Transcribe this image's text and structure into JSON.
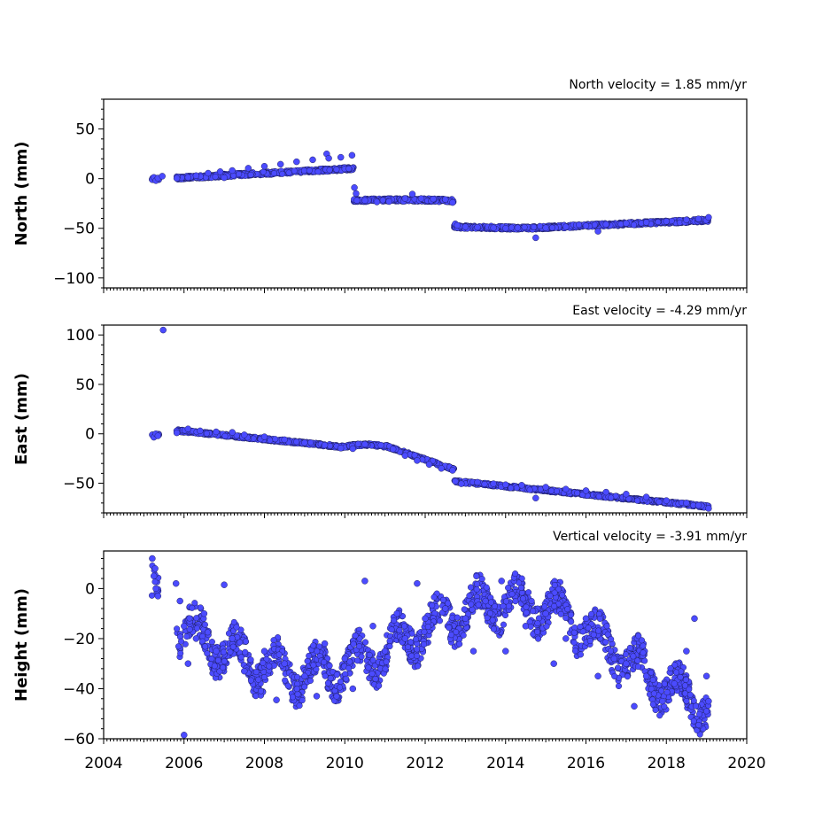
{
  "chart_data": [
    {
      "type": "scatter",
      "title": "North velocity = 1.85 mm/yr",
      "ylabel": "North (mm)",
      "xlim": [
        2004,
        2020
      ],
      "ylim": [
        -110,
        80
      ],
      "yticks": [
        -100,
        -50,
        0,
        50
      ],
      "ytick_labels": [
        "−100",
        "−50",
        "0",
        "50"
      ],
      "grid": false,
      "color": "#4b4bff",
      "edge_color": "#1a1a55",
      "series": [
        {
          "values": [
            [
              2005.21,
              -1.0
            ],
            [
              2005.25,
              1.2
            ],
            [
              2005.3,
              -2.0
            ],
            [
              2005.35,
              0.5
            ],
            [
              2005.46,
              2.5
            ],
            [
              2005.82,
              0.3
            ],
            [
              2006.1,
              1.2
            ],
            [
              2006.3,
              3.0
            ],
            [
              2006.6,
              5.5
            ],
            [
              2006.9,
              7.0
            ],
            [
              2007.2,
              8.2
            ],
            [
              2007.0,
              1.0
            ],
            [
              2007.6,
              10.5
            ],
            [
              2008.0,
              12.5
            ],
            [
              2008.4,
              14.5
            ],
            [
              2008.8,
              17.0
            ],
            [
              2009.2,
              19.0
            ],
            [
              2009.55,
              25.0
            ],
            [
              2009.6,
              20.5
            ],
            [
              2009.9,
              21.5
            ],
            [
              2010.18,
              23.5
            ],
            [
              2010.24,
              -9.0
            ],
            [
              2010.28,
              -15.0
            ],
            [
              2010.3,
              -22.0
            ],
            [
              2010.5,
              -22.0
            ],
            [
              2010.8,
              -23.5
            ],
            [
              2011.1,
              -23.0
            ],
            [
              2011.5,
              -20.0
            ],
            [
              2011.68,
              -15.5
            ],
            [
              2011.9,
              -20.0
            ],
            [
              2012.2,
              -20.5
            ],
            [
              2012.5,
              -21.0
            ],
            [
              2012.68,
              -24.0
            ],
            [
              2012.75,
              -45.5
            ],
            [
              2012.8,
              -47.0
            ],
            [
              2013.0,
              -48.5
            ],
            [
              2013.3,
              -49.0
            ],
            [
              2013.7,
              -49.5
            ],
            [
              2014.0,
              -50.0
            ],
            [
              2014.3,
              -49.5
            ],
            [
              2014.75,
              -59.5
            ],
            [
              2015.0,
              -49.5
            ],
            [
              2015.5,
              -48.5
            ],
            [
              2016.0,
              -47.5
            ],
            [
              2016.3,
              -53.0
            ],
            [
              2016.5,
              -46.0
            ],
            [
              2017.0,
              -45.0
            ],
            [
              2017.5,
              -44.0
            ],
            [
              2018.0,
              -43.0
            ],
            [
              2018.5,
              -41.5
            ],
            [
              2018.8,
              -40.5
            ],
            [
              2019.05,
              -39.0
            ]
          ]
        }
      ]
    },
    {
      "type": "scatter",
      "title": "East velocity = -4.29 mm/yr",
      "ylabel": "East (mm)",
      "xlim": [
        2004,
        2020
      ],
      "ylim": [
        -80,
        110
      ],
      "yticks": [
        -50,
        0,
        50,
        100
      ],
      "ytick_labels": [
        "−50",
        "0",
        "50",
        "100"
      ],
      "grid": false,
      "color": "#4b4bff",
      "edge_color": "#1a1a55",
      "series": [
        {
          "values": [
            [
              2005.21,
              -1.0
            ],
            [
              2005.25,
              -3.5
            ],
            [
              2005.3,
              0.0
            ],
            [
              2005.35,
              -2.0
            ],
            [
              2005.48,
              105.0
            ],
            [
              2005.82,
              1.0
            ],
            [
              2006.1,
              5.0
            ],
            [
              2006.4,
              3.0
            ],
            [
              2006.8,
              2.0
            ],
            [
              2007.2,
              1.5
            ],
            [
              2007.5,
              -1.0
            ],
            [
              2008.0,
              -3.0
            ],
            [
              2008.5,
              -6.0
            ],
            [
              2009.0,
              -9.0
            ],
            [
              2009.5,
              -11.5
            ],
            [
              2009.9,
              -14.5
            ],
            [
              2010.2,
              -15.0
            ],
            [
              2010.5,
              -10.5
            ],
            [
              2010.9,
              -11.5
            ],
            [
              2011.2,
              -15.5
            ],
            [
              2011.5,
              -22.0
            ],
            [
              2011.8,
              -27.0
            ],
            [
              2012.1,
              -31.0
            ],
            [
              2012.4,
              -35.0
            ],
            [
              2012.68,
              -37.0
            ],
            [
              2012.75,
              -48.0
            ],
            [
              2012.9,
              -50.5
            ],
            [
              2013.3,
              -49.0
            ],
            [
              2013.7,
              -50.5
            ],
            [
              2014.0,
              -51.5
            ],
            [
              2014.4,
              -52.0
            ],
            [
              2014.75,
              -65.0
            ],
            [
              2015.0,
              -54.0
            ],
            [
              2015.5,
              -56.0
            ],
            [
              2016.0,
              -57.5
            ],
            [
              2016.5,
              -59.0
            ],
            [
              2017.0,
              -61.0
            ],
            [
              2017.5,
              -64.0
            ],
            [
              2018.0,
              -67.5
            ],
            [
              2018.5,
              -70.0
            ],
            [
              2018.8,
              -72.5
            ],
            [
              2019.05,
              -75.5
            ]
          ]
        }
      ]
    },
    {
      "type": "scatter",
      "title": "Vertical velocity = -3.91 mm/yr",
      "ylabel": "Height (mm)",
      "xlabel": "",
      "xlim": [
        2004,
        2020
      ],
      "ylim": [
        -60,
        15
      ],
      "yticks": [
        -60,
        -40,
        -20,
        0
      ],
      "ytick_labels": [
        "−60",
        "−40",
        "−20",
        "0"
      ],
      "xticks": [
        2004,
        2006,
        2008,
        2010,
        2012,
        2014,
        2016,
        2018,
        2020
      ],
      "xtick_labels": [
        "2004",
        "2006",
        "2008",
        "2010",
        "2012",
        "2014",
        "2016",
        "2018",
        "2020"
      ],
      "grid": false,
      "color": "#4b4bff",
      "edge_color": "#1a1a55",
      "series": [
        {
          "values": [
            [
              2005.21,
              12.0
            ],
            [
              2005.25,
              5.0
            ],
            [
              2005.3,
              0.0
            ],
            [
              2005.35,
              -3.0
            ],
            [
              2005.28,
              8.0
            ],
            [
              2005.8,
              2.0
            ],
            [
              2005.9,
              -5.0
            ],
            [
              2006.0,
              -58.5
            ],
            [
              2006.0,
              -15.0
            ],
            [
              2006.1,
              -30.0
            ],
            [
              2006.3,
              -20.0
            ],
            [
              2006.5,
              -10.0
            ],
            [
              2006.8,
              -25.0
            ],
            [
              2007.2,
              -20.0
            ],
            [
              2007.5,
              -33.0
            ],
            [
              2007.0,
              1.5
            ],
            [
              2008.0,
              -25.0
            ],
            [
              2008.3,
              -44.5
            ],
            [
              2008.5,
              -30.0
            ],
            [
              2009.0,
              -35.0
            ],
            [
              2009.3,
              -43.0
            ],
            [
              2009.5,
              -22.0
            ],
            [
              2010.0,
              -28.0
            ],
            [
              2010.2,
              -40.0
            ],
            [
              2010.5,
              3.0
            ],
            [
              2010.7,
              -15.0
            ],
            [
              2011.0,
              -25.0
            ],
            [
              2011.3,
              -10.0
            ],
            [
              2011.5,
              -20.0
            ],
            [
              2011.8,
              2.0
            ],
            [
              2012.0,
              -12.0
            ],
            [
              2012.5,
              -8.0
            ],
            [
              2013.0,
              -12.0
            ],
            [
              2013.2,
              -25.0
            ],
            [
              2013.5,
              -5.0
            ],
            [
              2013.9,
              3.0
            ],
            [
              2014.0,
              -25.0
            ],
            [
              2014.5,
              -15.0
            ],
            [
              2015.0,
              -10.0
            ],
            [
              2015.2,
              -30.0
            ],
            [
              2015.5,
              -20.0
            ],
            [
              2016.0,
              -12.0
            ],
            [
              2016.3,
              -35.0
            ],
            [
              2016.7,
              -28.0
            ],
            [
              2017.0,
              -30.0
            ],
            [
              2017.2,
              -47.0
            ],
            [
              2017.5,
              -35.0
            ],
            [
              2017.9,
              -45.0
            ],
            [
              2018.2,
              -38.0
            ],
            [
              2018.5,
              -25.0
            ],
            [
              2018.7,
              -12.0
            ],
            [
              2019.0,
              -35.0
            ],
            [
              2019.05,
              -45.0
            ]
          ]
        }
      ]
    }
  ]
}
